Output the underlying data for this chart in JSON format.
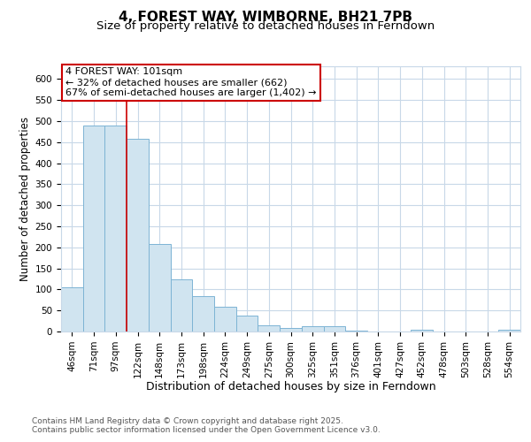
{
  "title1": "4, FOREST WAY, WIMBORNE, BH21 7PB",
  "title2": "Size of property relative to detached houses in Ferndown",
  "xlabel": "Distribution of detached houses by size in Ferndown",
  "ylabel": "Number of detached properties",
  "categories": [
    "46sqm",
    "71sqm",
    "97sqm",
    "122sqm",
    "148sqm",
    "173sqm",
    "198sqm",
    "224sqm",
    "249sqm",
    "275sqm",
    "300sqm",
    "325sqm",
    "351sqm",
    "376sqm",
    "401sqm",
    "427sqm",
    "452sqm",
    "478sqm",
    "503sqm",
    "528sqm",
    "554sqm"
  ],
  "values": [
    105,
    490,
    490,
    458,
    207,
    124,
    83,
    58,
    38,
    15,
    9,
    12,
    12,
    3,
    0,
    0,
    5,
    0,
    0,
    0,
    5
  ],
  "bar_color": "#d0e4f0",
  "bar_edge_color": "#7db4d4",
  "red_line_color": "#cc0000",
  "red_line_x": 2.5,
  "annotation_text": "4 FOREST WAY: 101sqm\n← 32% of detached houses are smaller (662)\n67% of semi-detached houses are larger (1,402) →",
  "annotation_box_color": "#ffffff",
  "annotation_box_edge": "#cc0000",
  "footnote1": "Contains HM Land Registry data © Crown copyright and database right 2025.",
  "footnote2": "Contains public sector information licensed under the Open Government Licence v3.0.",
  "ylim": [
    0,
    630
  ],
  "yticks": [
    0,
    50,
    100,
    150,
    200,
    250,
    300,
    350,
    400,
    450,
    500,
    550,
    600
  ],
  "bg_color": "#ffffff",
  "plot_bg_color": "#ffffff",
  "grid_color": "#c8d8e8",
  "title1_fontsize": 11,
  "title2_fontsize": 9.5,
  "xlabel_fontsize": 9,
  "ylabel_fontsize": 8.5,
  "tick_fontsize": 7.5,
  "footnote_fontsize": 6.5,
  "ann_fontsize": 8
}
